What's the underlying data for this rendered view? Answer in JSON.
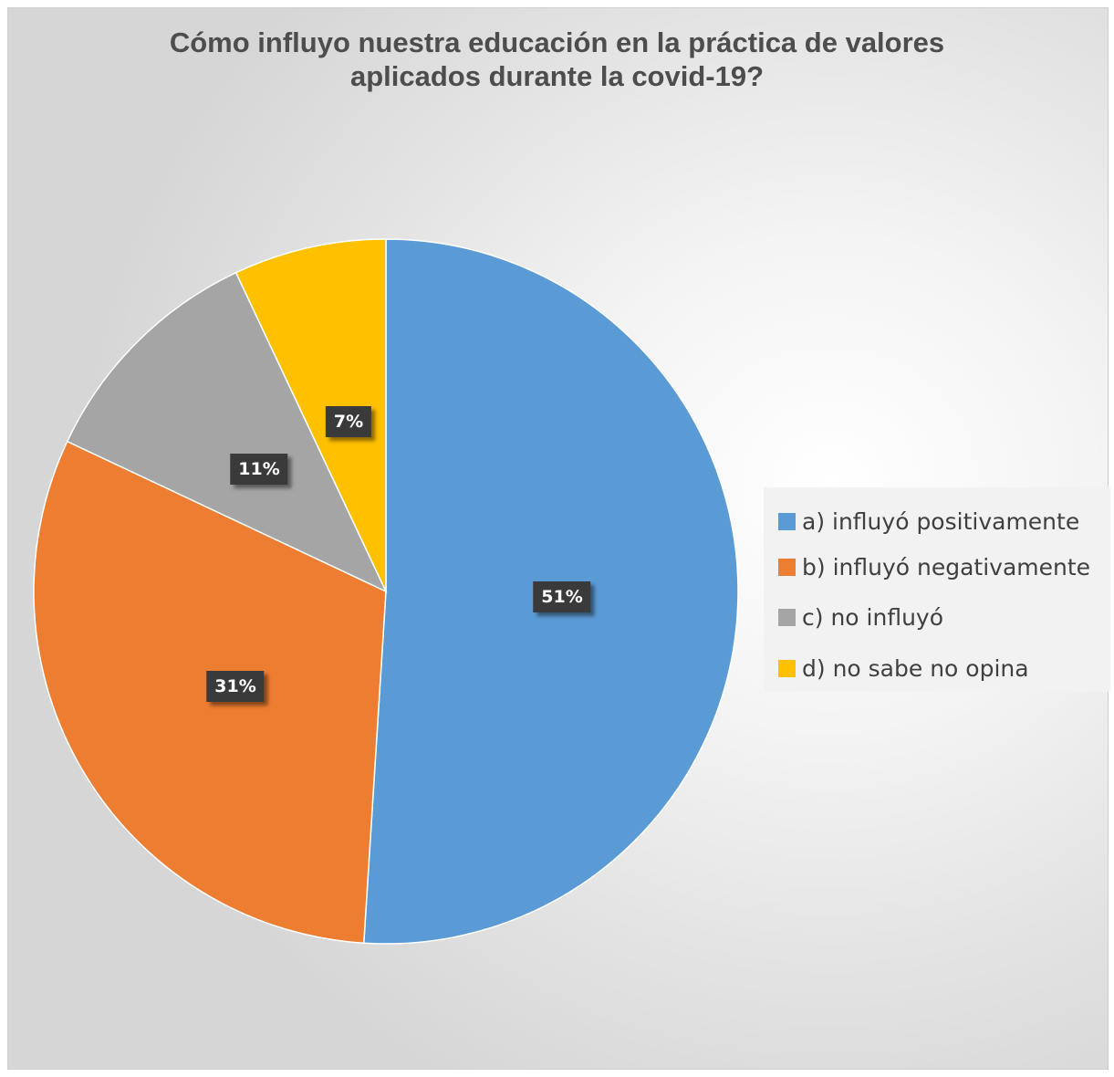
{
  "chart_data": {
    "type": "pie",
    "title_lines": [
      "Cómo influyo nuestra educación en la práctica de valores",
      "aplicados durante la covid-19?"
    ],
    "categories": [
      "a) influyó positivamente",
      "b) influyó negativamente",
      "c) no influyó",
      "d) no sabe no opina"
    ],
    "values": [
      51,
      31,
      11,
      7
    ],
    "data_labels": [
      "51%",
      "31%",
      "11%",
      "7%"
    ],
    "colors": [
      "#5b9bd5",
      "#ed7d31",
      "#a5a5a5",
      "#ffc000"
    ],
    "legend_position": "right"
  }
}
